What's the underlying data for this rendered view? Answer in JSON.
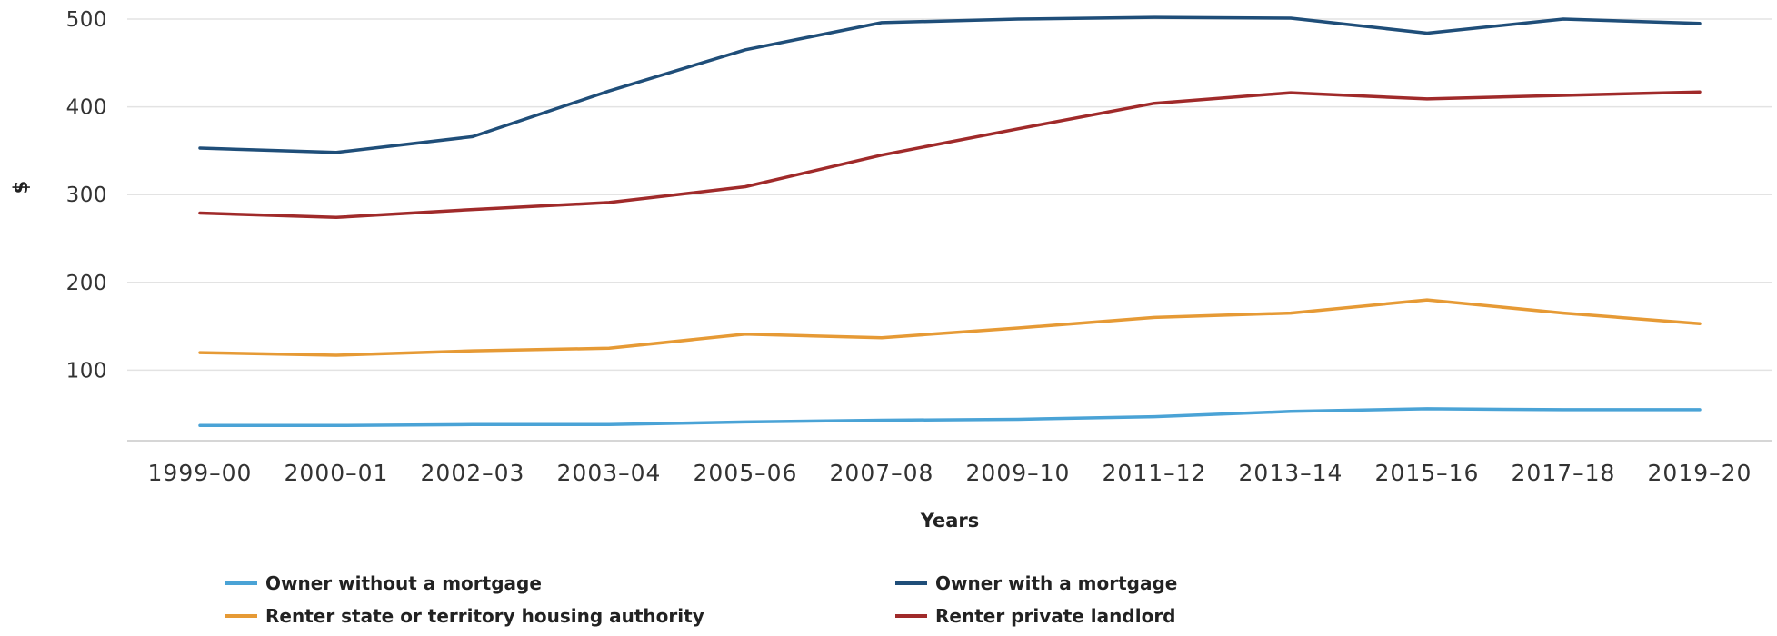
{
  "chart_data": {
    "type": "line",
    "xlabel": "Years",
    "ylabel": "$",
    "ylim": [
      0,
      500
    ],
    "yticks": [
      100,
      200,
      300,
      400,
      500
    ],
    "grid": true,
    "legend_position": "bottom",
    "categories": [
      "1999–00",
      "2000–01",
      "2002–03",
      "2003–04",
      "2005–06",
      "2007–08",
      "2009–10",
      "2011–12",
      "2013–14",
      "2015–16",
      "2017–18",
      "2019–20"
    ],
    "series": [
      {
        "name": "Owner without a mortgage",
        "color": "#4aa3d6",
        "values": [
          37,
          37,
          38,
          38,
          41,
          43,
          44,
          47,
          53,
          56,
          55,
          55
        ]
      },
      {
        "name": "Owner with a mortgage",
        "color": "#1f4e79",
        "values": [
          353,
          348,
          366,
          418,
          465,
          496,
          500,
          502,
          501,
          484,
          500,
          495
        ]
      },
      {
        "name": "Renter state or territory housing authority",
        "color": "#e69a35",
        "values": [
          120,
          117,
          122,
          125,
          141,
          137,
          148,
          160,
          165,
          180,
          165,
          153
        ]
      },
      {
        "name": "Renter private landlord",
        "color": "#a02a2a",
        "values": [
          279,
          274,
          283,
          291,
          309,
          345,
          375,
          404,
          416,
          409,
          413,
          417
        ]
      }
    ]
  }
}
